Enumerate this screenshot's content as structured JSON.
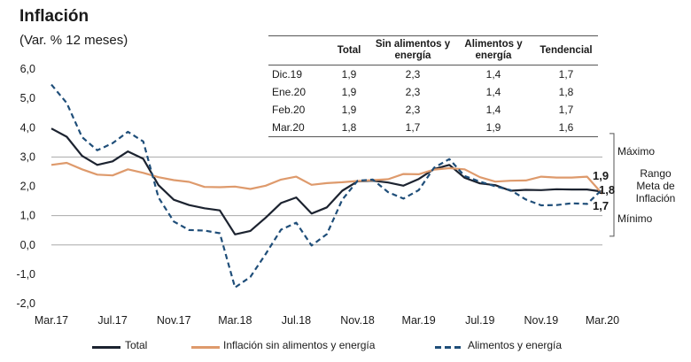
{
  "title": "Inflación",
  "subtitle": "(Var. % 12 meses)",
  "colors": {
    "total": "#1c2330",
    "sin_alimentos": "#de9a6c",
    "alimentos": "#1f4e79"
  },
  "table": {
    "headers": [
      "",
      "Total",
      "Sin alimentos y energía",
      "Alimentos y energía",
      "Tendencial"
    ],
    "rows": [
      [
        "Dic.19",
        "1,9",
        "2,3",
        "1,4",
        "1,7"
      ],
      [
        "Ene.20",
        "1,9",
        "2,3",
        "1,4",
        "1,8"
      ],
      [
        "Feb.20",
        "1,9",
        "2,3",
        "1,4",
        "1,7"
      ],
      [
        "Mar.20",
        "1,8",
        "1,7",
        "1,9",
        "1,6"
      ]
    ]
  },
  "annotations": {
    "maximo": "Máximo",
    "minimo": "Mínimo",
    "rango": "Rango Meta de Inflación",
    "end_total": "1,8",
    "end_sin": "1,7",
    "end_alim": "1,9"
  },
  "chart_data": {
    "type": "line",
    "title": "Inflación",
    "subtitle": "(Var. % 12 meses)",
    "ylim": [
      -2,
      6
    ],
    "yticks": [
      "6,0",
      "5,0",
      "4,0",
      "3,0",
      "2,0",
      "1,0",
      "0,0",
      "-1,0",
      "-2,0"
    ],
    "xtick_labels": [
      "Mar.17",
      "Jul.17",
      "Nov.17",
      "Mar.18",
      "Jul.18",
      "Nov.18",
      "Mar.19",
      "Jul.19",
      "Nov.19",
      "Mar.20"
    ],
    "target_band": {
      "min": 1,
      "max": 3
    },
    "x": [
      "Mar.17",
      "Abr.17",
      "May.17",
      "Jun.17",
      "Jul.17",
      "Ago.17",
      "Sep.17",
      "Oct.17",
      "Nov.17",
      "Dic.17",
      "Ene.18",
      "Feb.18",
      "Mar.18",
      "Abr.18",
      "May.18",
      "Jun.18",
      "Jul.18",
      "Ago.18",
      "Sep.18",
      "Oct.18",
      "Nov.18",
      "Dic.18",
      "Ene.19",
      "Feb.19",
      "Mar.19",
      "Abr.19",
      "May.19",
      "Jun.19",
      "Jul.19",
      "Ago.19",
      "Sep.19",
      "Oct.19",
      "Nov.19",
      "Dic.19",
      "Ene.20",
      "Feb.20",
      "Mar.20"
    ],
    "series": [
      {
        "name": "Total",
        "style": "solid",
        "colorKey": "total",
        "values": [
          3.97,
          3.69,
          3.04,
          2.73,
          2.85,
          3.19,
          2.94,
          2.04,
          1.54,
          1.36,
          1.25,
          1.18,
          0.36,
          0.48,
          0.93,
          1.43,
          1.62,
          1.07,
          1.28,
          1.85,
          2.17,
          2.19,
          2.13,
          2.02,
          2.25,
          2.59,
          2.73,
          2.29,
          2.1,
          2.04,
          1.85,
          1.88,
          1.87,
          1.9,
          1.89,
          1.89,
          1.82
        ]
      },
      {
        "name": "Inflación sin alimentos y energía",
        "style": "solid",
        "colorKey": "sin_alimentos",
        "values": [
          2.73,
          2.8,
          2.58,
          2.4,
          2.37,
          2.58,
          2.46,
          2.31,
          2.21,
          2.15,
          1.98,
          1.97,
          1.99,
          1.91,
          2.02,
          2.23,
          2.33,
          2.05,
          2.11,
          2.14,
          2.18,
          2.21,
          2.24,
          2.42,
          2.41,
          2.57,
          2.62,
          2.58,
          2.31,
          2.16,
          2.19,
          2.2,
          2.33,
          2.3,
          2.3,
          2.33,
          1.74
        ]
      },
      {
        "name": "Alimentos y energía",
        "style": "dashed",
        "colorKey": "alimentos",
        "values": [
          5.47,
          4.84,
          3.68,
          3.23,
          3.47,
          3.86,
          3.53,
          1.62,
          0.8,
          0.51,
          0.49,
          0.4,
          -1.45,
          -1.09,
          -0.31,
          0.52,
          0.76,
          -0.02,
          0.37,
          1.54,
          2.19,
          2.23,
          1.8,
          1.58,
          1.87,
          2.63,
          2.93,
          2.35,
          2.16,
          2.0,
          1.87,
          1.55,
          1.35,
          1.36,
          1.42,
          1.4,
          1.9
        ]
      }
    ]
  }
}
